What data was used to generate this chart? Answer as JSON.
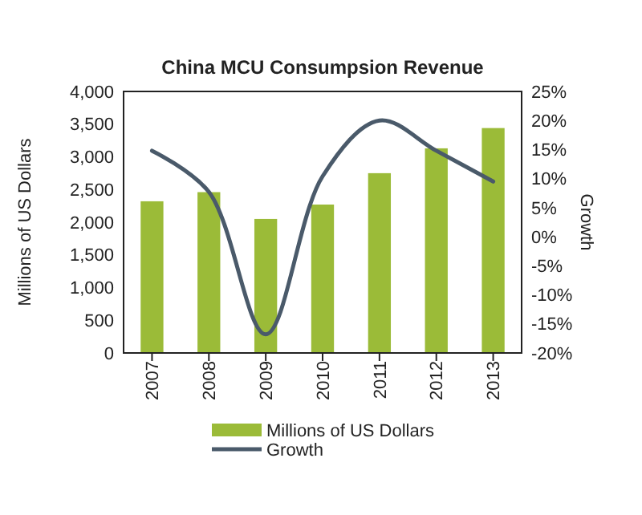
{
  "chart_data": {
    "type": "bar",
    "title": "China MCU Consumpsion Revenue",
    "ylabel": "Millions of US Dollars",
    "y2label": "Growth",
    "categories": [
      "2007",
      "2008",
      "2009",
      "2010",
      "2011",
      "2012",
      "2013"
    ],
    "series": [
      {
        "name": "Millions of US Dollars",
        "color": "#9bbb38",
        "values": [
          2320,
          2460,
          2050,
          2270,
          2750,
          3130,
          3440
        ]
      },
      {
        "name": "Growth",
        "type": "line",
        "axis": "y2",
        "color": "#4a5a6a",
        "values": [
          14.8,
          7.7,
          -16.8,
          10.4,
          20,
          14.8,
          9.5
        ]
      }
    ],
    "ylim": [
      0,
      4000
    ],
    "yticks": [
      {
        "value": 0,
        "label": "0"
      },
      {
        "value": 500,
        "label": "500"
      },
      {
        "value": 1000,
        "label": "1,000"
      },
      {
        "value": 1500,
        "label": "1,500"
      },
      {
        "value": 2000,
        "label": "2,000"
      },
      {
        "value": 2500,
        "label": "2,500"
      },
      {
        "value": 3000,
        "label": "3,000"
      },
      {
        "value": 3500,
        "label": "3,500"
      },
      {
        "value": 4000,
        "label": "4,000"
      }
    ],
    "y2lim": [
      -20,
      25
    ],
    "y2ticks": [
      {
        "value": -20,
        "label": "-20%"
      },
      {
        "value": -15,
        "label": "-15%"
      },
      {
        "value": -10,
        "label": "-10%"
      },
      {
        "value": -5,
        "label": "-5%"
      },
      {
        "value": 0,
        "label": "0%"
      },
      {
        "value": 5,
        "label": "5%"
      },
      {
        "value": 10,
        "label": "10%"
      },
      {
        "value": 15,
        "label": "15%"
      },
      {
        "value": 20,
        "label": "20%"
      },
      {
        "value": 25,
        "label": "25%"
      }
    ],
    "legend": "bottom",
    "grid": false,
    "marker": "none",
    "line_style": "solid"
  }
}
